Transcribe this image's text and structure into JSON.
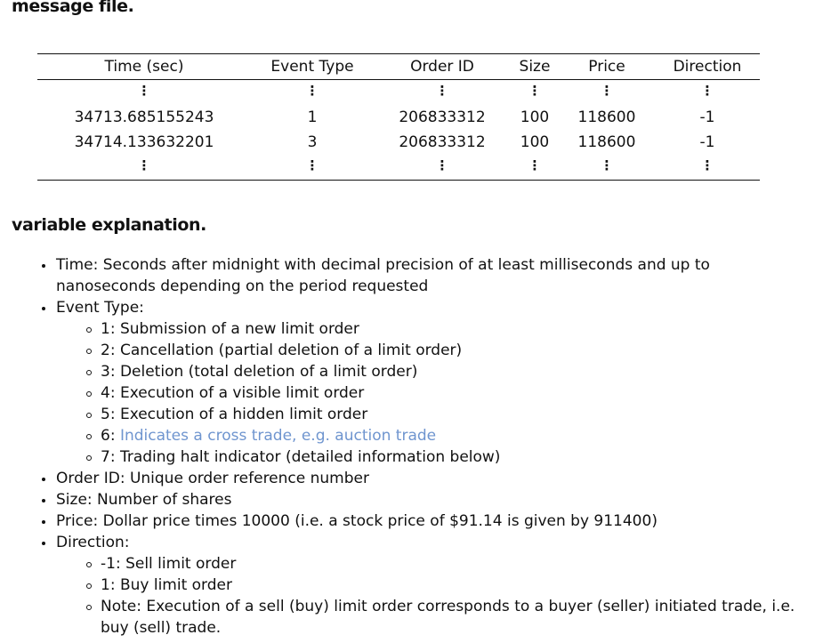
{
  "headings": {
    "message_file": "message file.",
    "variable_explanation": "variable explanation."
  },
  "table": {
    "headers": [
      "Time (sec)",
      "Event Type",
      "Order ID",
      "Size",
      "Price",
      "Direction"
    ],
    "ellipsis": "⋮",
    "rows": [
      [
        "34713.685155243",
        "1",
        "206833312",
        "100",
        "118600",
        "-1"
      ],
      [
        "34714.133632201",
        "3",
        "206833312",
        "100",
        "118600",
        "-1"
      ]
    ]
  },
  "explanations": {
    "time": "Time: Seconds after midnight with decimal precision of at least milliseconds and up to nanoseconds depending on the period requested",
    "event_type": "Event Type:",
    "event_items": [
      "1: Submission of a new limit order",
      "2: Cancellation (partial deletion of a limit order)",
      "3: Deletion (total deletion of a limit order)",
      "4: Execution of a visible limit order",
      "5: Execution of a hidden limit order"
    ],
    "event6_prefix": "6: ",
    "event6_text": "Indicates a cross trade, e.g. auction trade",
    "event7": "7: Trading halt indicator (detailed information below)",
    "order_id": "Order ID: Unique order reference number",
    "size": "Size: Number of shares",
    "price": "Price: Dollar price times 10000 (i.e. a stock price of $91.14 is given by 911400)",
    "direction": "Direction:",
    "direction_items": [
      "-1: Sell limit order",
      "1: Buy limit order",
      "Note: Execution of a sell (buy) limit order corresponds to a buyer (seller) initiated trade, i.e. buy (sell) trade."
    ]
  },
  "colors": {
    "text": "#111111",
    "link_blue": "#6f95cf"
  }
}
